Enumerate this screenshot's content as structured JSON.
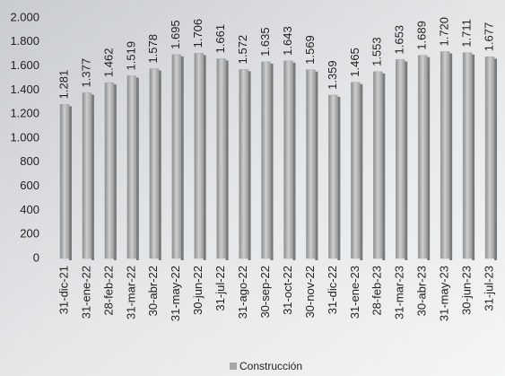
{
  "chart_data": {
    "type": "bar",
    "categories": [
      "31-dic-21",
      "31-ene-22",
      "28-feb-22",
      "31-mar-22",
      "30-abr-22",
      "31-may-22",
      "30-jun-22",
      "31-jul-22",
      "31-ago-22",
      "30-sep-22",
      "31-oct-22",
      "30-nov-22",
      "31-dic-22",
      "31-ene-23",
      "28-feb-23",
      "31-mar-23",
      "30-abr-23",
      "31-may-23",
      "30-jun-23",
      "31-jul-23"
    ],
    "series": [
      {
        "name": "Construcción",
        "color": "#a6a6a6",
        "values": [
          1281,
          1377,
          1462,
          1519,
          1578,
          1695,
          1706,
          1661,
          1572,
          1635,
          1643,
          1569,
          1359,
          1465,
          1553,
          1653,
          1689,
          1720,
          1711,
          1677
        ],
        "value_labels": [
          "1.281",
          "1.377",
          "1.462",
          "1.519",
          "1.578",
          "1.695",
          "1.706",
          "1.661",
          "1.572",
          "1.635",
          "1.643",
          "1.569",
          "1.359",
          "1.465",
          "1.553",
          "1.653",
          "1.689",
          "1.720",
          "1.711",
          "1.677"
        ]
      }
    ],
    "ylim": [
      0,
      2000
    ],
    "yticks": [
      0,
      200,
      400,
      600,
      800,
      {
        "value": 1000,
        "label": "1.000"
      },
      {
        "value": 1200,
        "label": "1.200"
      },
      {
        "value": 1400,
        "label": "1.400"
      },
      {
        "value": 1600,
        "label": "1.600"
      },
      {
        "value": 1800,
        "label": "1.800"
      },
      {
        "value": 2000,
        "label": "2.000"
      }
    ],
    "grid": false,
    "legend": "bottom"
  }
}
